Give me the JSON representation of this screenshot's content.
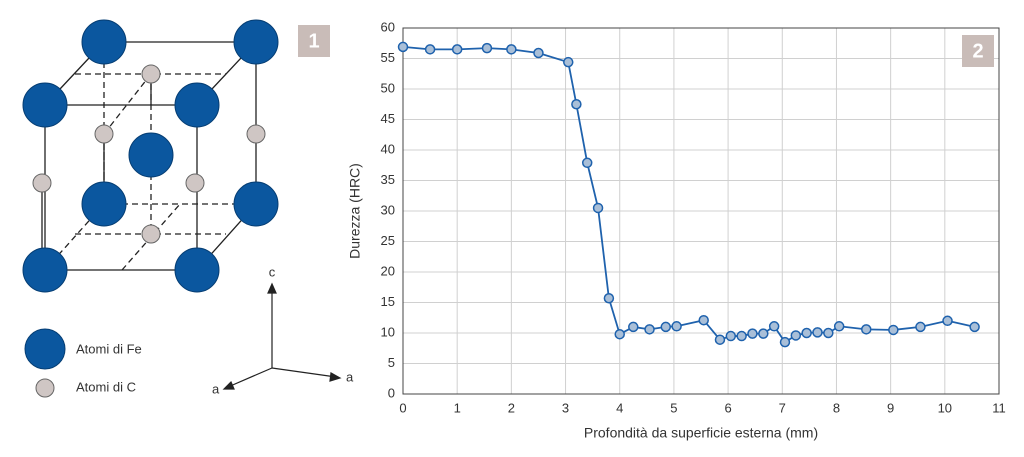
{
  "diagram": {
    "panel_label": "1",
    "legend": [
      "Atomi di Fe",
      "Atomi di C"
    ],
    "axis_labels": [
      "c",
      "a",
      "a"
    ]
  },
  "chart_data": {
    "type": "line",
    "panel_label": "2",
    "x_label": "Profondità da superficie esterna (mm)",
    "y_label": "Durezza (HRC)",
    "x": [
      0,
      0.5,
      1,
      1.55,
      2,
      2.5,
      3.05,
      3.2,
      3.4,
      3.6,
      3.8,
      4,
      4.25,
      4.55,
      4.85,
      5.05,
      5.55,
      5.85,
      6.05,
      6.25,
      6.45,
      6.65,
      6.85,
      7.05,
      7.25,
      7.45,
      7.65,
      7.85,
      8.05,
      8.55,
      9.05,
      9.55,
      10.05,
      10.55
    ],
    "series": [
      {
        "color": "#1f62ad",
        "marker_fill": "#a9bfd8",
        "values": [
          56.9,
          56.5,
          56.5,
          56.7,
          56.5,
          55.9,
          54.4,
          47.5,
          37.9,
          30.5,
          15.7,
          9.8,
          11,
          10.6,
          11,
          11.1,
          12.1,
          8.9,
          9.5,
          9.5,
          9.9,
          9.9,
          11.1,
          8.5,
          9.6,
          10,
          10.1,
          10,
          11.1,
          10.6,
          10.5,
          11,
          12,
          11
        ]
      }
    ],
    "xlim": [
      0,
      11
    ],
    "xticks": [
      0,
      1,
      2,
      3,
      4,
      5,
      6,
      7,
      8,
      9,
      10,
      11
    ],
    "ylim": [
      0,
      60
    ],
    "yticks": [
      0,
      5,
      10,
      15,
      20,
      25,
      30,
      35,
      40,
      45,
      50,
      55,
      60
    ],
    "grid": true
  }
}
